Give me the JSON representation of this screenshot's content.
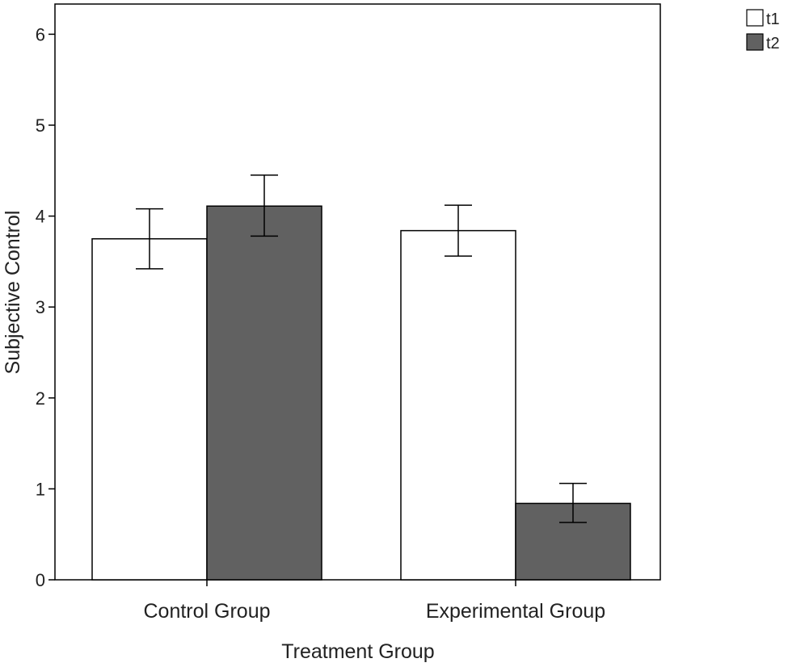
{
  "chart_data": {
    "type": "bar",
    "xlabel": "Treatment Group",
    "ylabel": "Subjective Control",
    "ylim": [
      0,
      6.35
    ],
    "yticks": [
      "0",
      "1",
      "2",
      "3",
      "4",
      "5",
      "6"
    ],
    "categories": [
      "Control Group",
      "Experimental Group"
    ],
    "series": [
      {
        "name": "t1",
        "color": "#ffffff",
        "values": [
          3.75,
          3.84
        ],
        "error_low": [
          3.42,
          3.56
        ],
        "error_high": [
          4.08,
          4.12
        ]
      },
      {
        "name": "t2",
        "color": "#616161",
        "values": [
          4.11,
          0.84
        ],
        "error_low": [
          3.78,
          0.63
        ],
        "error_high": [
          4.45,
          1.06
        ]
      }
    ],
    "error_bars": true,
    "grid": false,
    "legend": {
      "position": "top-right, outside plot"
    }
  }
}
